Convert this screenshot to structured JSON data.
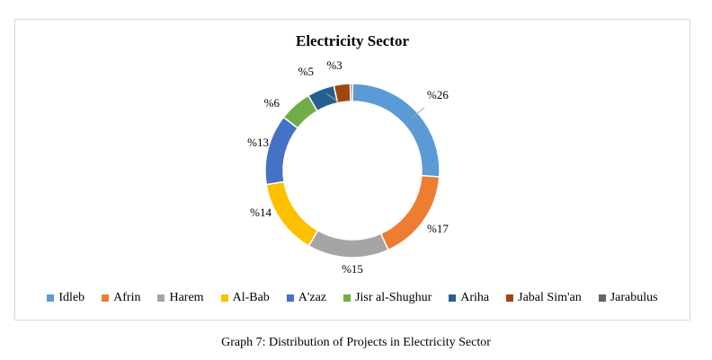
{
  "chart_data": {
    "type": "pie",
    "donut": true,
    "title": "Electricity Sector",
    "categories": [
      "Idleb",
      "Afrin",
      "Harem",
      "Al-Bab",
      "A'zaz",
      "Jisr al-Shughur",
      "Ariha",
      "Jabal Sim'an",
      "Jarabulus"
    ],
    "values": [
      26,
      17,
      15,
      14,
      13,
      6,
      5,
      3,
      0.4
    ],
    "labels": [
      "%26",
      "%17",
      "%15",
      "%14",
      "%13",
      "%6",
      "%5",
      "%3",
      ""
    ],
    "colors": [
      "#5b9bd5",
      "#ed7d31",
      "#a5a5a5",
      "#ffc000",
      "#4472c4",
      "#70ad47",
      "#255e91",
      "#9e480e",
      "#636363"
    ],
    "legend_position": "bottom"
  },
  "caption": "Graph 7: Distribution of Projects in Electricity Sector"
}
